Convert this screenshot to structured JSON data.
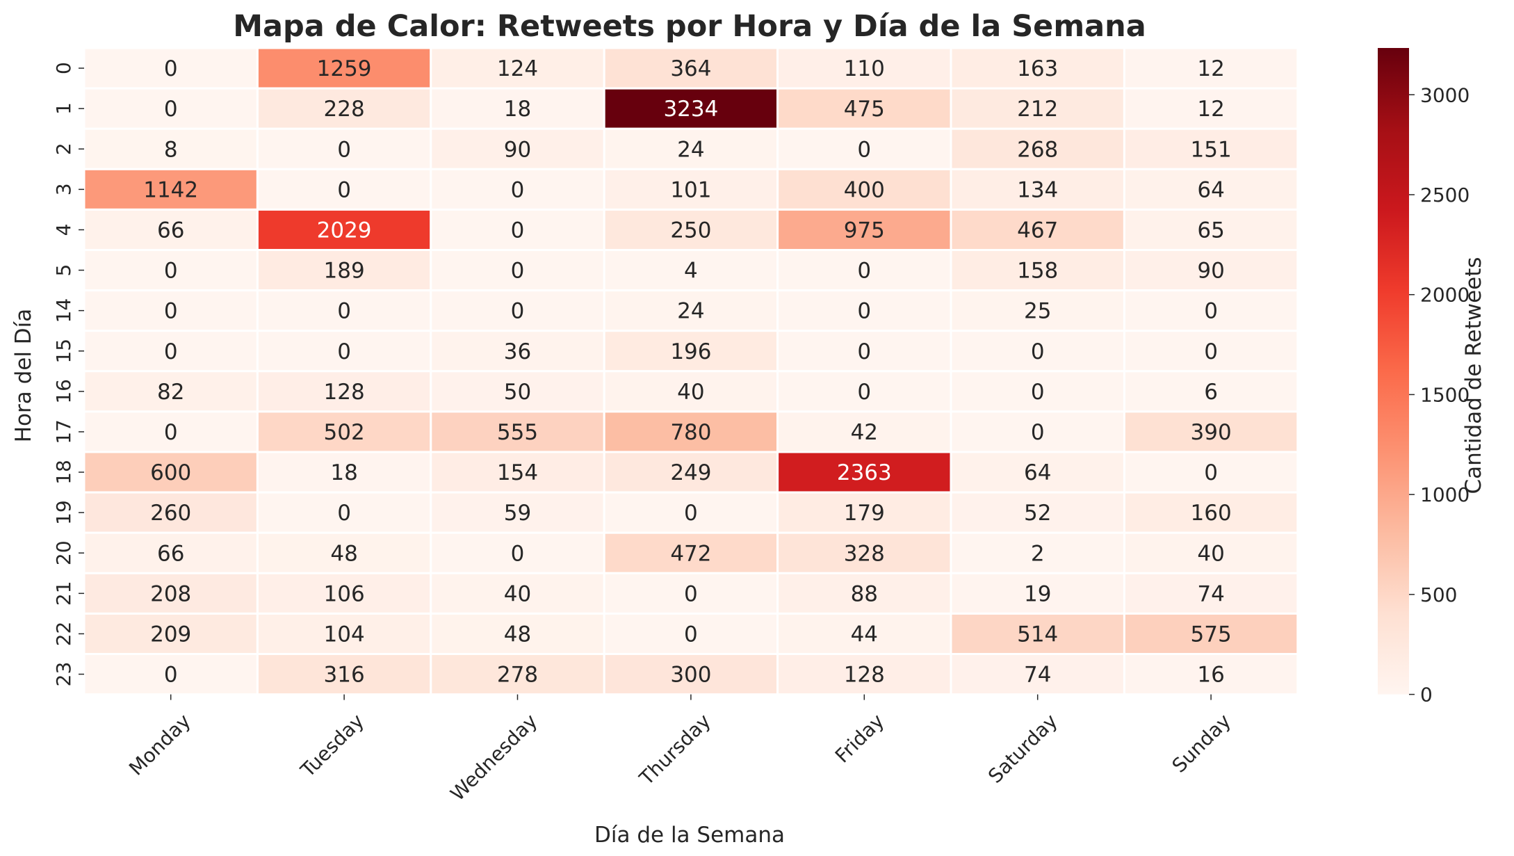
{
  "chart_data": {
    "type": "heatmap",
    "title": "Mapa de Calor: Retweets por Hora y Día de la Semana",
    "xlabel": "Día de la Semana",
    "ylabel": "Hora del Día",
    "colorbar_label": "Cantidad de Retweets",
    "colormap": "Reds",
    "colorbar_range": [
      0,
      3234
    ],
    "colorbar_ticks": [
      "0",
      "500",
      "1000",
      "1500",
      "2000",
      "2500",
      "3000"
    ],
    "colorbar_tick_values": [
      0,
      500,
      1000,
      1500,
      2000,
      2500,
      3000
    ],
    "x_categories": [
      "Monday",
      "Tuesday",
      "Wednesday",
      "Thursday",
      "Friday",
      "Saturday",
      "Sunday"
    ],
    "y_categories": [
      "0",
      "1",
      "2",
      "3",
      "4",
      "5",
      "14",
      "15",
      "16",
      "17",
      "18",
      "19",
      "20",
      "21",
      "22",
      "23"
    ],
    "values": [
      [
        0,
        1259,
        124,
        364,
        110,
        163,
        12
      ],
      [
        0,
        228,
        18,
        3234,
        475,
        212,
        12
      ],
      [
        8,
        0,
        90,
        24,
        0,
        268,
        151
      ],
      [
        1142,
        0,
        0,
        101,
        400,
        134,
        64
      ],
      [
        66,
        2029,
        0,
        250,
        975,
        467,
        65
      ],
      [
        0,
        189,
        0,
        4,
        0,
        158,
        90
      ],
      [
        0,
        0,
        0,
        24,
        0,
        25,
        0
      ],
      [
        0,
        0,
        36,
        196,
        0,
        0,
        0
      ],
      [
        82,
        128,
        50,
        40,
        0,
        0,
        6
      ],
      [
        0,
        502,
        555,
        780,
        42,
        0,
        390
      ],
      [
        600,
        18,
        154,
        249,
        2363,
        64,
        0
      ],
      [
        260,
        0,
        59,
        0,
        179,
        52,
        160
      ],
      [
        66,
        48,
        0,
        472,
        328,
        2,
        40
      ],
      [
        208,
        106,
        40,
        0,
        88,
        19,
        74
      ],
      [
        209,
        104,
        48,
        0,
        44,
        514,
        575
      ],
      [
        0,
        316,
        278,
        300,
        128,
        74,
        16
      ]
    ]
  }
}
